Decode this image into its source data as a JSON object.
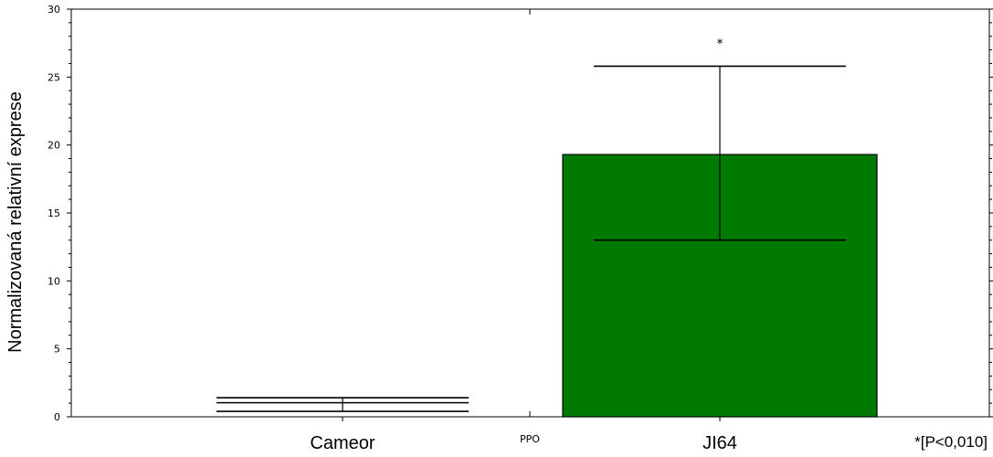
{
  "chart_data": {
    "type": "bar",
    "categories": [
      "Cameor",
      "JI64"
    ],
    "middle_label": "PPO",
    "series": [
      {
        "values": [
          1.0,
          19.3
        ],
        "error_low": [
          0.4,
          13.0
        ],
        "error_high": [
          1.4,
          25.8
        ],
        "colors": [
          "#ffffff",
          "#007a00"
        ]
      }
    ],
    "ylabel": "Normalizovaná relativní exprese",
    "ylim": [
      0,
      30
    ],
    "yticks": [
      "0",
      "5",
      "10",
      "15",
      "20",
      "25",
      "30"
    ],
    "annotations": [
      {
        "category": "JI64",
        "text": "*"
      }
    ],
    "significance_note": "*[P<0,010]",
    "grid": false
  }
}
